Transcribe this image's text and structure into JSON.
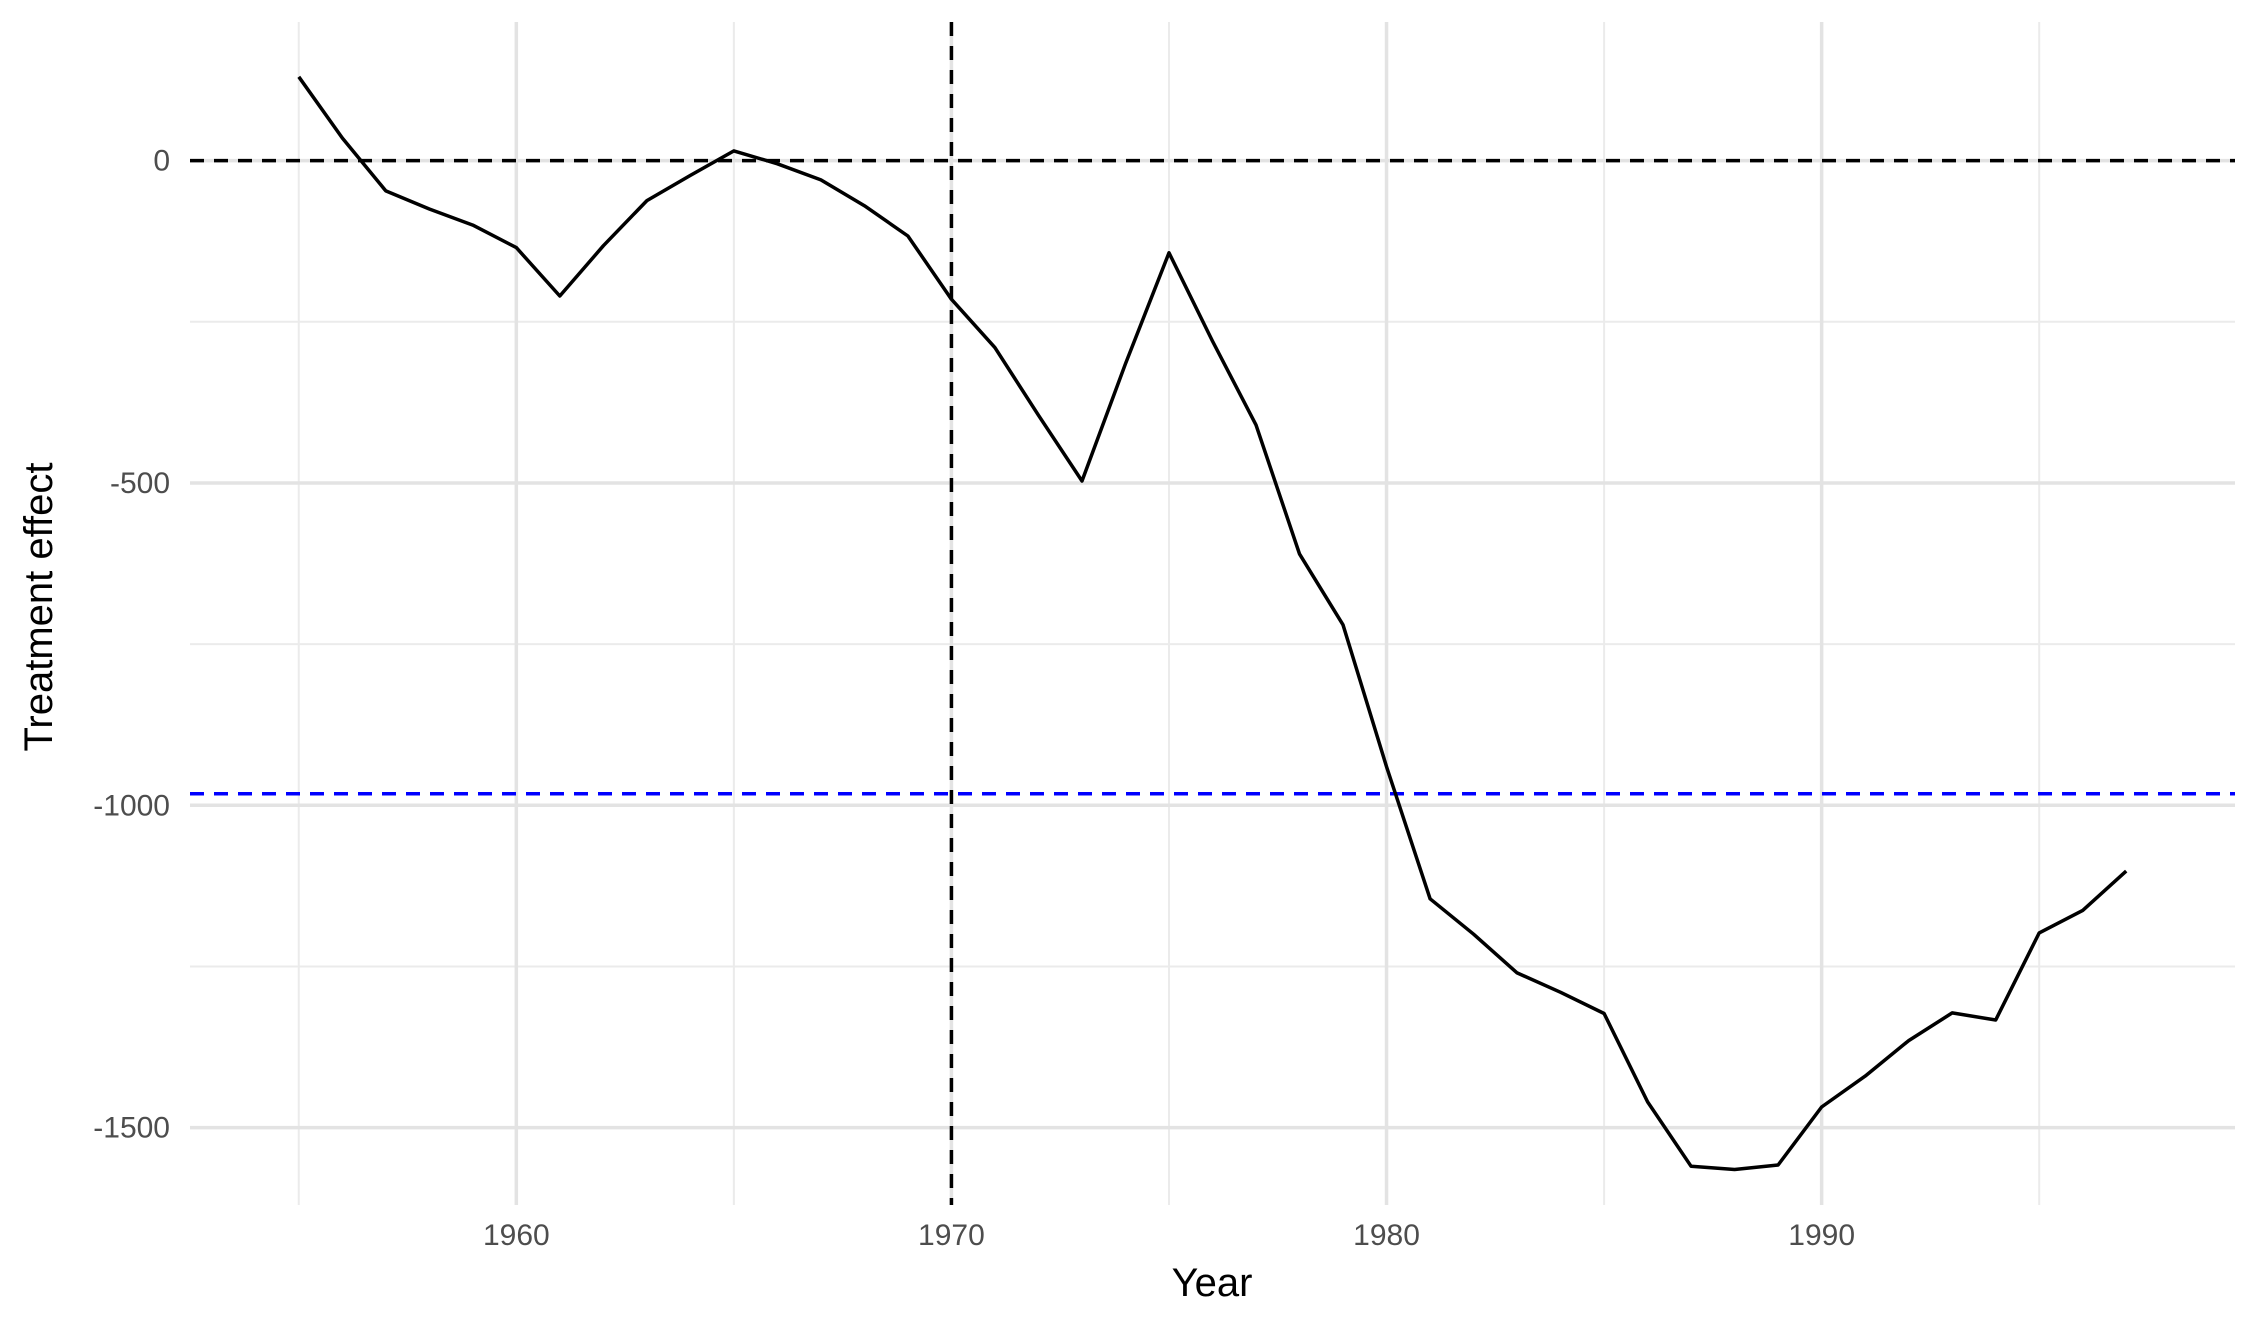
{
  "chart_data": {
    "type": "line",
    "title": "",
    "xlabel": "Year",
    "ylabel": "Treatment effect",
    "xlim": [
      1952.5,
      1999.5
    ],
    "ylim": [
      -1620,
      215
    ],
    "x_ticks": [
      1960,
      1970,
      1980,
      1990
    ],
    "y_ticks": [
      0,
      -500,
      -1000,
      -1500
    ],
    "grid": true,
    "legend": "none",
    "series": [
      {
        "color": "#000000",
        "x": [
          1955,
          1956,
          1957,
          1958,
          1959,
          1960,
          1961,
          1962,
          1963,
          1964,
          1965,
          1966,
          1967,
          1968,
          1969,
          1970,
          1971,
          1972,
          1973,
          1974,
          1975,
          1976,
          1977,
          1978,
          1979,
          1980,
          1981,
          1982,
          1983,
          1984,
          1985,
          1986,
          1987,
          1988,
          1989,
          1990,
          1991,
          1992,
          1993,
          1994,
          1995,
          1996,
          1997
        ],
        "values": [
          130,
          35,
          -47,
          -75,
          -100,
          -135,
          -210,
          -132,
          -62,
          -23,
          15,
          -5,
          -30,
          -70,
          -117,
          -215,
          -290,
          -395,
          -497,
          -315,
          -143,
          -280,
          -410,
          -610,
          -720,
          -940,
          -1145,
          -1200,
          -1260,
          -1290,
          -1323,
          -1460,
          -1560,
          -1565,
          -1558,
          -1468,
          -1420,
          -1365,
          -1322,
          -1333,
          -1198,
          -1163,
          -1102
        ]
      }
    ],
    "reference_lines": [
      {
        "orientation": "horizontal",
        "value": 0,
        "color": "#000000",
        "style": "dashed"
      },
      {
        "orientation": "vertical",
        "value": 1970,
        "color": "#000000",
        "style": "dashed"
      },
      {
        "orientation": "horizontal",
        "value": -982,
        "color": "#0000ff",
        "style": "dashed"
      }
    ]
  }
}
